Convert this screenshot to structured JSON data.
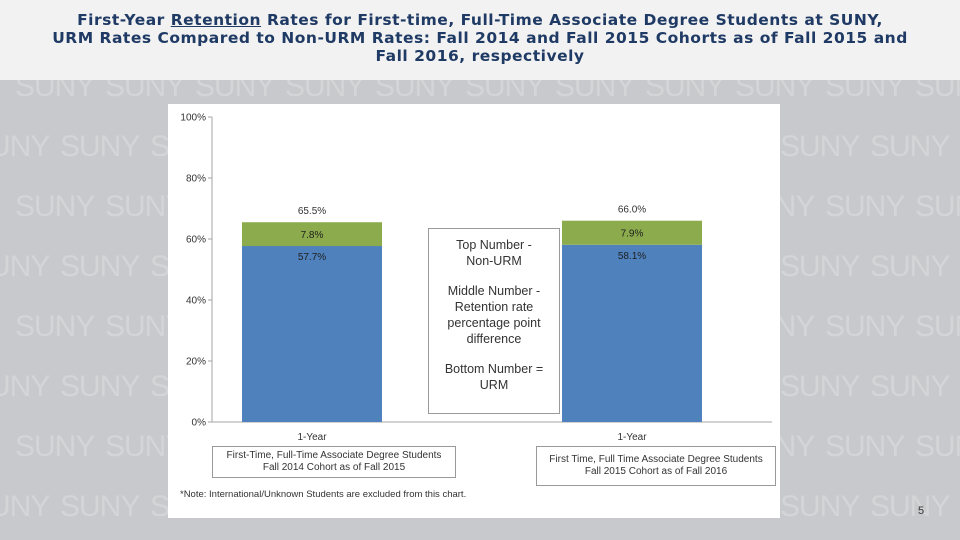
{
  "header": {
    "line1_pre": "First-Year ",
    "line1_underlined": "Retention",
    "line1_post": " Rates for First-time, Full-Time Associate Degree Students at SUNY,",
    "line2": "URM Rates Compared to Non-URM Rates: Fall 2014 and Fall 2015 Cohorts as of Fall 2015 and",
    "line3": "Fall 2016, respectively"
  },
  "watermark": {
    "text": "SUNY"
  },
  "chart_data": {
    "type": "bar",
    "stacked": true,
    "categories": [
      "1-Year",
      "1-Year"
    ],
    "category_descriptions": [
      [
        "First-Time, Full-Time Associate Degree Students",
        "Fall 2014 Cohort as of Fall 2015"
      ],
      [
        "First Time, Full Time Associate Degree Students",
        "Fall 2015 Cohort as of Fall 2016"
      ]
    ],
    "series": [
      {
        "name": "URM",
        "values": [
          57.7,
          58.1
        ],
        "labels": [
          "57.7%",
          "58.1%"
        ],
        "color": "#4f81bd"
      },
      {
        "name": "Retention rate percentage point difference",
        "values": [
          7.8,
          7.9
        ],
        "labels": [
          "7.8%",
          "7.9%"
        ],
        "color": "#8bab4c"
      }
    ],
    "totals": {
      "values": [
        65.5,
        66.0
      ],
      "labels": [
        "65.5%",
        "66.0%"
      ]
    },
    "yaxis": {
      "min": 0,
      "max": 100,
      "ticks": [
        0,
        20,
        40,
        60,
        80,
        100
      ],
      "tick_labels": [
        "0%",
        "20%",
        "40%",
        "60%",
        "80%",
        "100%"
      ]
    },
    "grid": false,
    "legend_text": {
      "top": [
        "Top Number -",
        "Non-URM"
      ],
      "middle": [
        "Middle Number -",
        "Retention rate",
        "percentage point",
        "difference"
      ],
      "bottom": [
        "Bottom Number =",
        "URM"
      ]
    },
    "note": "*Note: International/Unknown Students are excluded from this chart."
  },
  "footer": {
    "page_number": "5"
  }
}
